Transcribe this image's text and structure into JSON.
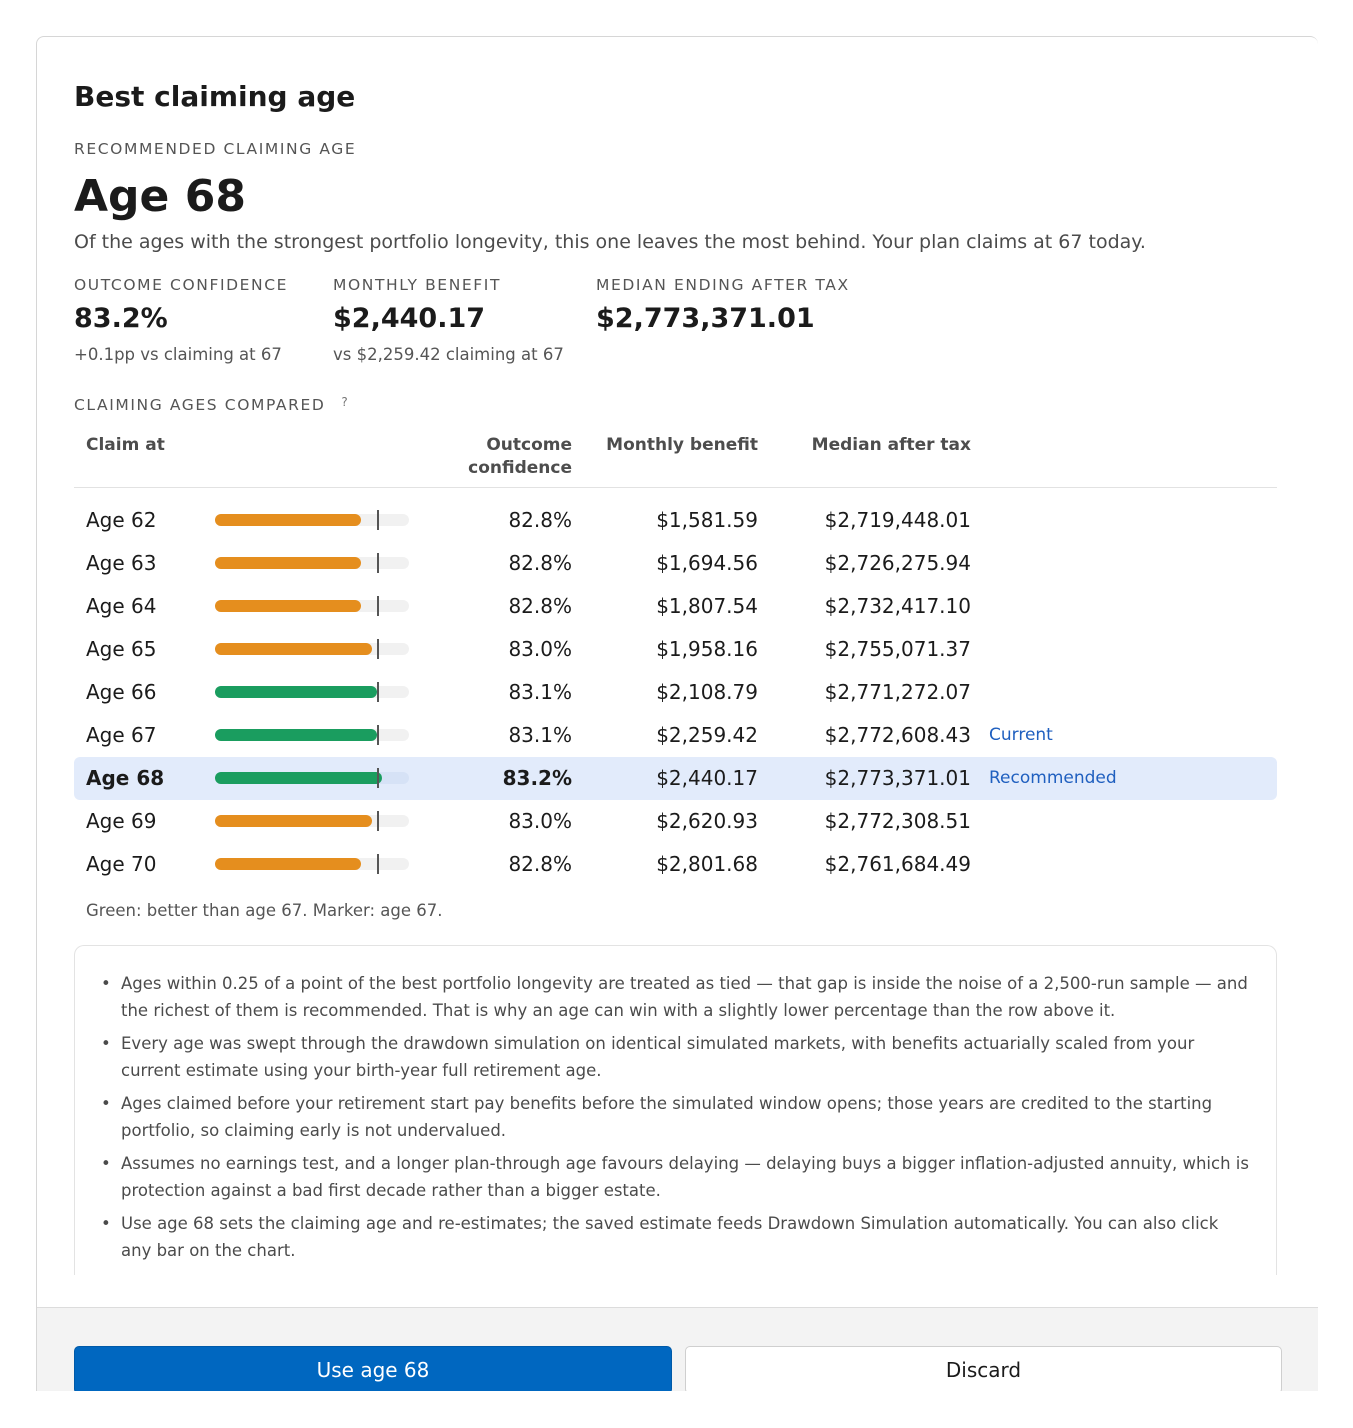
{
  "dialog": {
    "title": "Best claiming age",
    "recommended_eyebrow": "RECOMMENDED CLAIMING AGE",
    "headline": "Age 68",
    "lead": "Of the ages with the strongest portfolio longevity, this one leaves the most behind. Your plan claims at 67 today."
  },
  "stats": [
    {
      "label": "OUTCOME CONFIDENCE",
      "value": "83.2%",
      "sub": "+0.1pp vs claiming at 67"
    },
    {
      "label": "MONTHLY BENEFIT",
      "value": "$2,440.17",
      "sub": "vs $2,259.42 claiming at 67"
    },
    {
      "label": "MEDIAN ENDING AFTER TAX",
      "value": "$2,773,371.01",
      "sub": ""
    }
  ],
  "comparison": {
    "heading": "CLAIMING AGES COMPARED",
    "help_glyph": "?",
    "columns": {
      "claim_at": "Claim at",
      "outcome_line1": "Outcome",
      "outcome_line2": "confidence",
      "monthly_benefit": "Monthly benefit",
      "median_after_tax": "Median after tax"
    },
    "marker_confidence": 83.1,
    "colors": {
      "better": "#1a9d5f",
      "worse": "#e58e1e"
    },
    "rows": [
      {
        "age": "Age 62",
        "confidence": "82.8%",
        "confidence_value": 82.8,
        "benefit": "$1,581.59",
        "median": "$2,719,448.01",
        "tag": "",
        "better": false,
        "selected": false
      },
      {
        "age": "Age 63",
        "confidence": "82.8%",
        "confidence_value": 82.8,
        "benefit": "$1,694.56",
        "median": "$2,726,275.94",
        "tag": "",
        "better": false,
        "selected": false
      },
      {
        "age": "Age 64",
        "confidence": "82.8%",
        "confidence_value": 82.8,
        "benefit": "$1,807.54",
        "median": "$2,732,417.10",
        "tag": "",
        "better": false,
        "selected": false
      },
      {
        "age": "Age 65",
        "confidence": "83.0%",
        "confidence_value": 83.0,
        "benefit": "$1,958.16",
        "median": "$2,755,071.37",
        "tag": "",
        "better": false,
        "selected": false
      },
      {
        "age": "Age 66",
        "confidence": "83.1%",
        "confidence_value": 83.1,
        "benefit": "$2,108.79",
        "median": "$2,771,272.07",
        "tag": "",
        "better": true,
        "selected": false
      },
      {
        "age": "Age 67",
        "confidence": "83.1%",
        "confidence_value": 83.1,
        "benefit": "$2,259.42",
        "median": "$2,772,608.43",
        "tag": "Current",
        "better": true,
        "selected": false
      },
      {
        "age": "Age 68",
        "confidence": "83.2%",
        "confidence_value": 83.2,
        "benefit": "$2,440.17",
        "median": "$2,773,371.01",
        "tag": "Recommended",
        "better": true,
        "selected": true
      },
      {
        "age": "Age 69",
        "confidence": "83.0%",
        "confidence_value": 83.0,
        "benefit": "$2,620.93",
        "median": "$2,772,308.51",
        "tag": "",
        "better": false,
        "selected": false
      },
      {
        "age": "Age 70",
        "confidence": "82.8%",
        "confidence_value": 82.8,
        "benefit": "$2,801.68",
        "median": "$2,761,684.49",
        "tag": "",
        "better": false,
        "selected": false
      }
    ],
    "legend_note": "Green: better than age 67. Marker: age 67."
  },
  "notes": [
    "Ages within 0.25 of a point of the best portfolio longevity are treated as tied — that gap is inside the noise of a 2,500-run sample — and the richest of them is recommended. That is why an age can win with a slightly lower percentage than the row above it.",
    "Every age was swept through the drawdown simulation on identical simulated markets, with benefits actuarially scaled from your current estimate using your birth-year full retirement age.",
    "Ages claimed before your retirement start pay benefits before the simulated window opens; those years are credited to the starting portfolio, so claiming early is not undervalued.",
    "Assumes no earnings test, and a longer plan-through age favours delaying — delaying buys a bigger inflation-adjusted annuity, which is protection against a bad first decade rather than a bigger estate.",
    "Use age 68 sets the claiming age and re-estimates; the saved estimate feeds Drawdown Simulation automatically. You can also click any bar on the chart."
  ],
  "footer": {
    "primary_label": "Use age 68",
    "secondary_label": "Discard"
  }
}
